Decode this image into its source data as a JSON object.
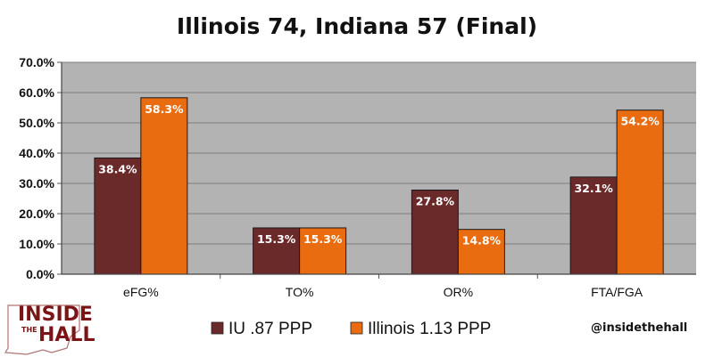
{
  "chart_data": {
    "type": "bar",
    "title": "Illinois 74, Indiana 57 (Final)",
    "categories": [
      "eFG%",
      "TO%",
      "OR%",
      "FTA/FGA"
    ],
    "series": [
      {
        "name": "IU .87 PPP",
        "color": "#6b2a2a",
        "values": [
          38.4,
          15.3,
          27.8,
          32.1
        ],
        "labels": [
          "38.4%",
          "15.3%",
          "27.8%",
          "32.1%"
        ]
      },
      {
        "name": "Illinois 1.13 PPP",
        "color": "#e96c10",
        "values": [
          58.3,
          15.3,
          14.8,
          54.2
        ],
        "labels": [
          "58.3%",
          "15.3%",
          "14.8%",
          "54.2%"
        ]
      }
    ],
    "ylim": [
      0,
      70
    ],
    "yticks": [
      "0.0%",
      "10.0%",
      "20.0%",
      "30.0%",
      "40.0%",
      "50.0%",
      "60.0%",
      "70.0%"
    ],
    "grid": true,
    "plot_background": "#b3b3b3",
    "legend_position": "bottom"
  },
  "branding": {
    "logo_line1": "INSIDE",
    "logo_small": "THE",
    "logo_line2": "HALL",
    "logo_color": "#7b1416",
    "handle": "@insidethehall"
  }
}
